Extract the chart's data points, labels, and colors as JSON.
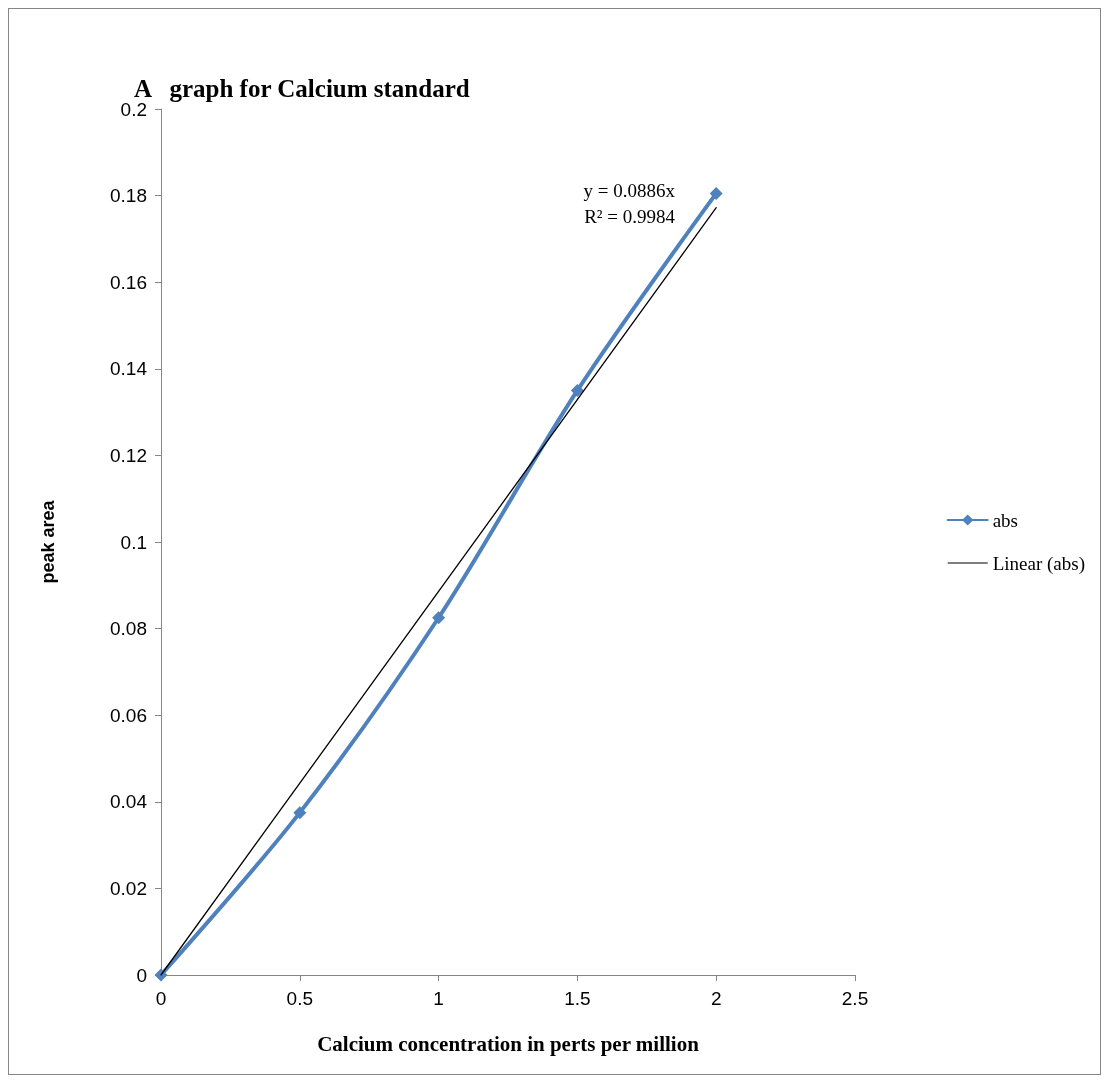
{
  "chart_data": {
    "type": "line",
    "title": "A   graph for Calcium standard",
    "xlabel": "Calcium concentration in perts per million",
    "ylabel": "peak area",
    "x": [
      0,
      0.5,
      1,
      1.5,
      2
    ],
    "series": [
      {
        "name": "abs",
        "color": "#4f81bd",
        "values": [
          0,
          0.0375,
          0.0825,
          0.135,
          0.1805
        ],
        "marker": "diamond"
      },
      {
        "name": "Linear (abs)",
        "color": "#000000",
        "x": [
          0,
          2
        ],
        "values": [
          0,
          0.1772
        ],
        "marker": "none"
      }
    ],
    "annotations": [
      "y = 0.0886x",
      "R² = 0.9984"
    ],
    "xlim": [
      0,
      2.5
    ],
    "xticks": [
      0,
      0.5,
      1,
      1.5,
      2,
      2.5
    ],
    "ylim": [
      0,
      0.2
    ],
    "yticks": [
      0,
      0.02,
      0.04,
      0.06,
      0.08,
      0.1,
      0.12,
      0.14,
      0.16,
      0.18,
      0.2
    ],
    "grid": false,
    "legend": "right",
    "line_style": "solid"
  }
}
